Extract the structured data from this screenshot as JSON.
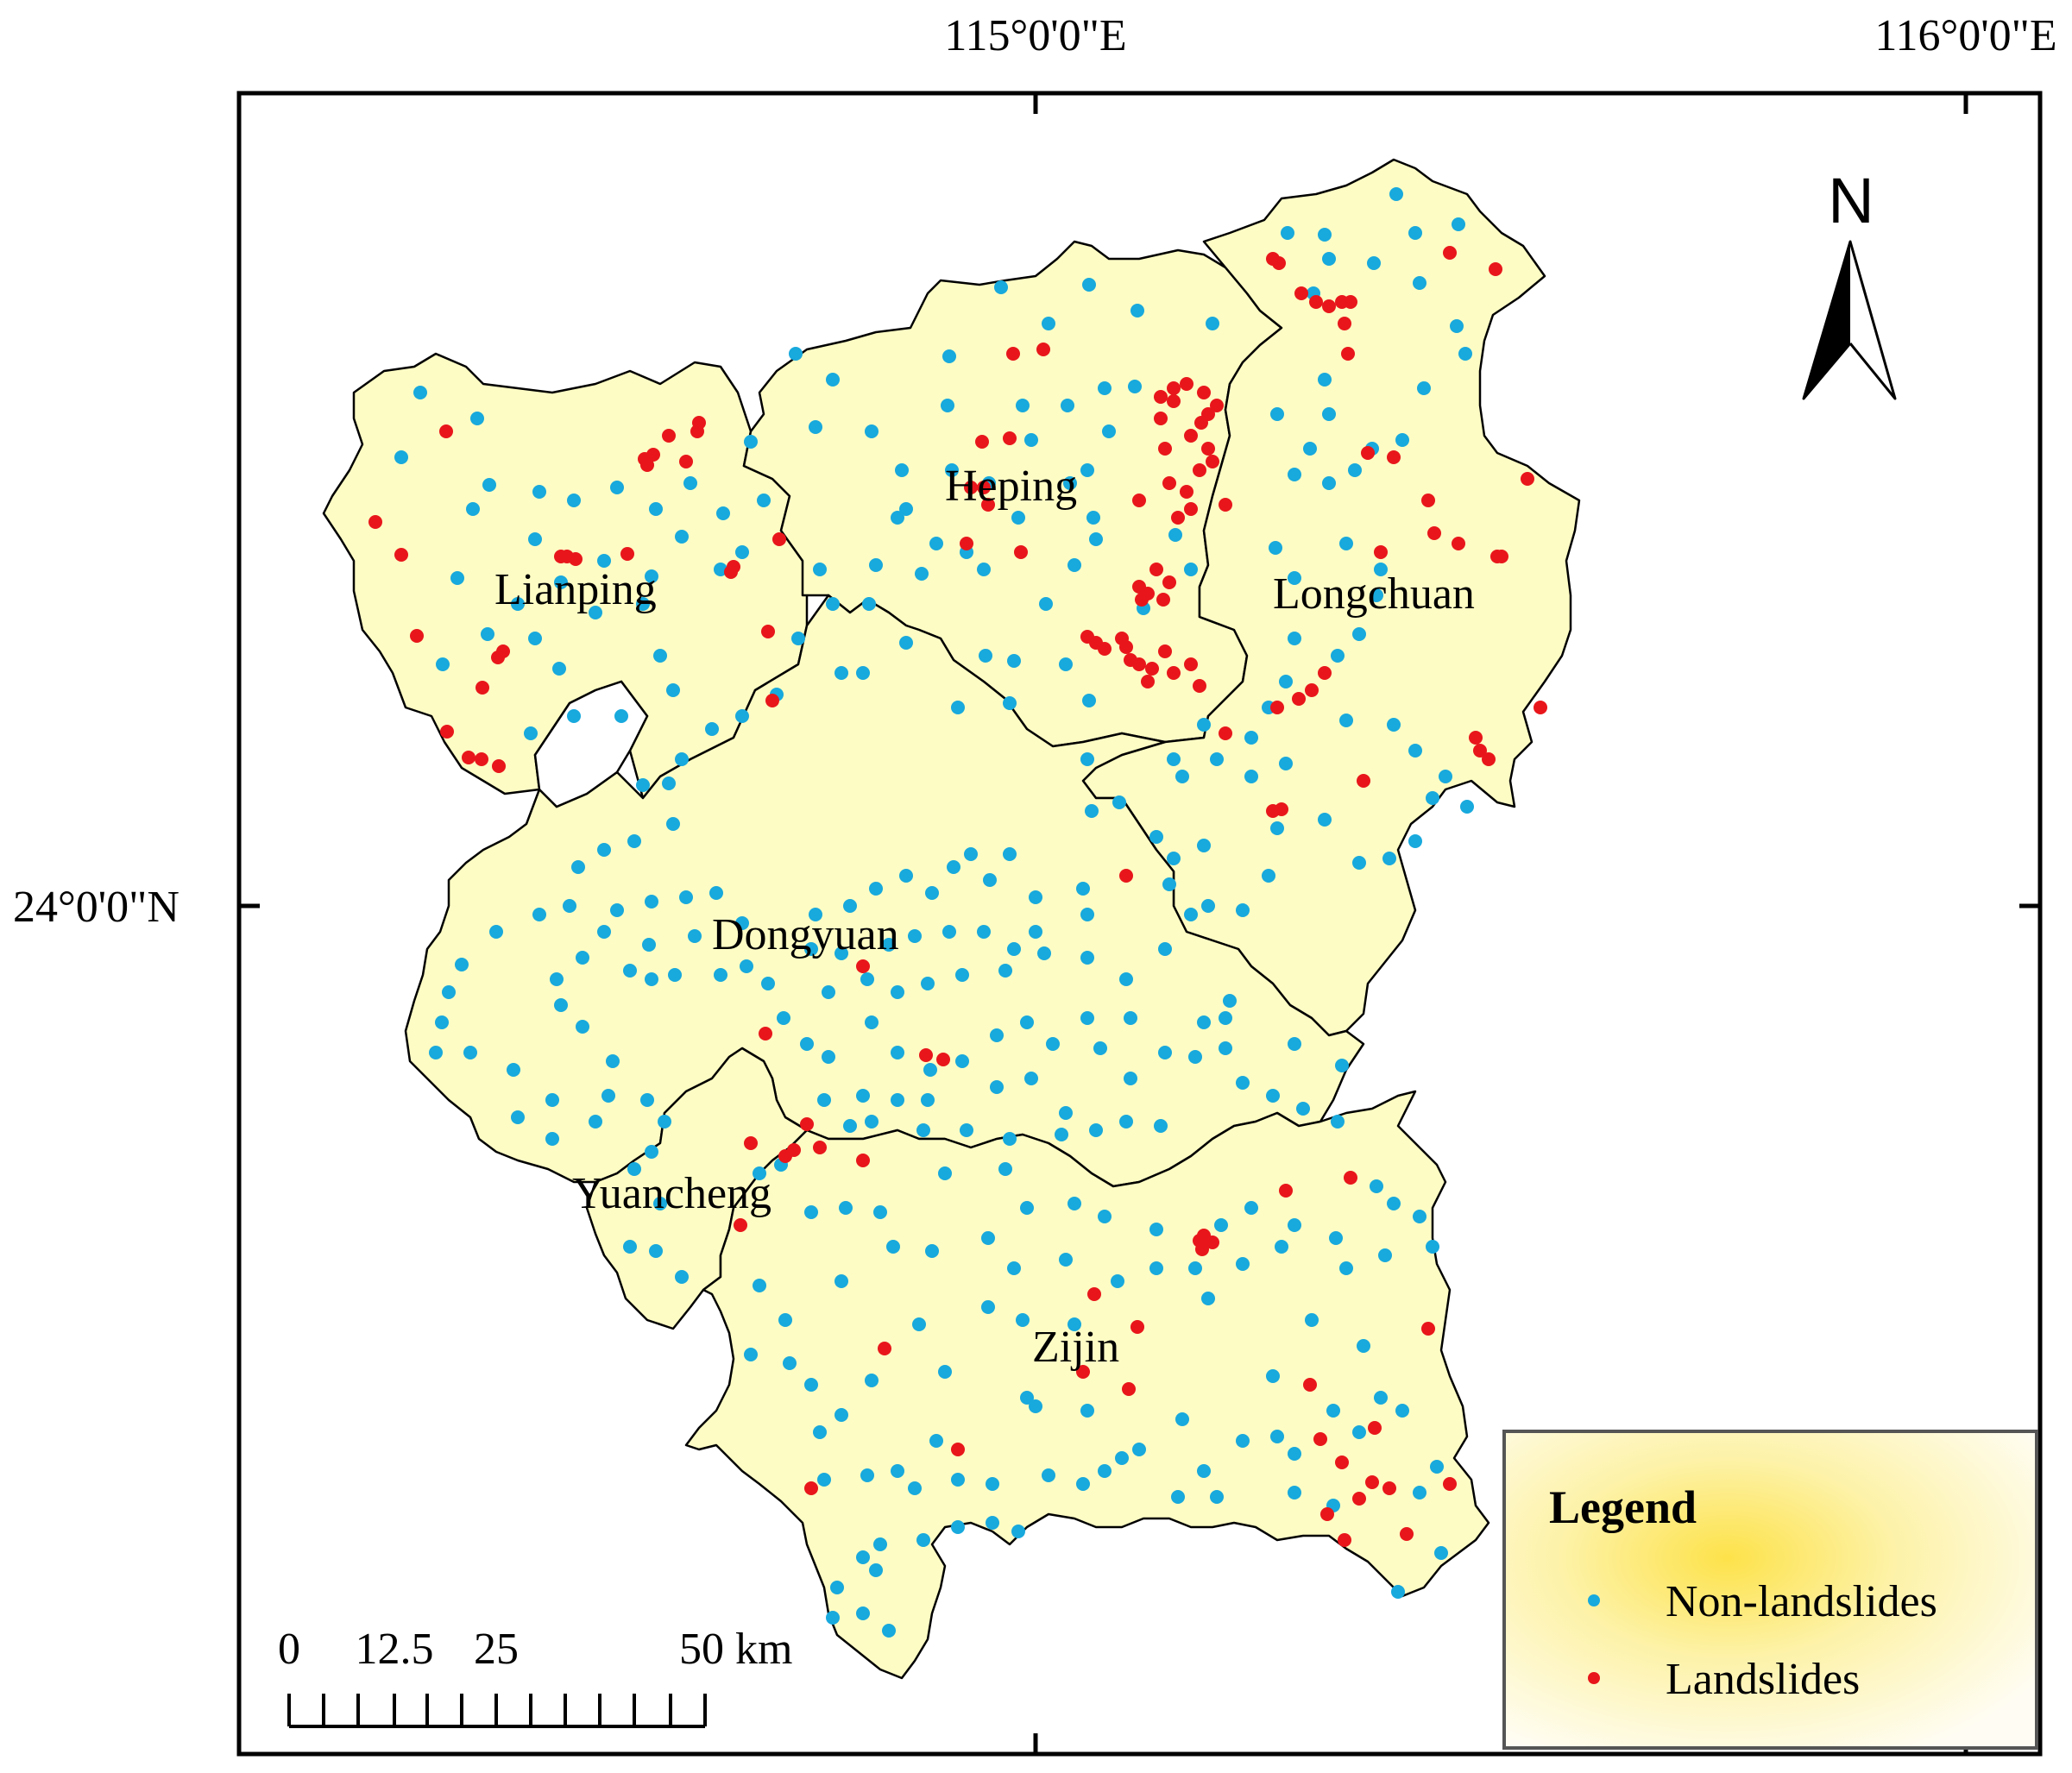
{
  "graticule": {
    "lon_labels": [
      "115°0'0\"E",
      "116°0'0\"E"
    ],
    "lat_labels": [
      "24°0'0\"N"
    ]
  },
  "regions": [
    {
      "name": "Lianping"
    },
    {
      "name": "Heping"
    },
    {
      "name": "Longchuan"
    },
    {
      "name": "Dongyuan"
    },
    {
      "name": "Yuancheng"
    },
    {
      "name": "Zijin"
    }
  ],
  "north_arrow": {
    "label": "N"
  },
  "scale_bar": {
    "labels": [
      "0",
      "12.5",
      "25",
      "50 km"
    ]
  },
  "legend": {
    "title": "Legend",
    "items": [
      {
        "label": "Non-landslides",
        "color": "#18a9dd"
      },
      {
        "label": "Landslides",
        "color": "#e8161b"
      }
    ]
  },
  "colors": {
    "land": "#fdfcc4",
    "border": "#000000",
    "legend_glow": "#fde24a"
  }
}
